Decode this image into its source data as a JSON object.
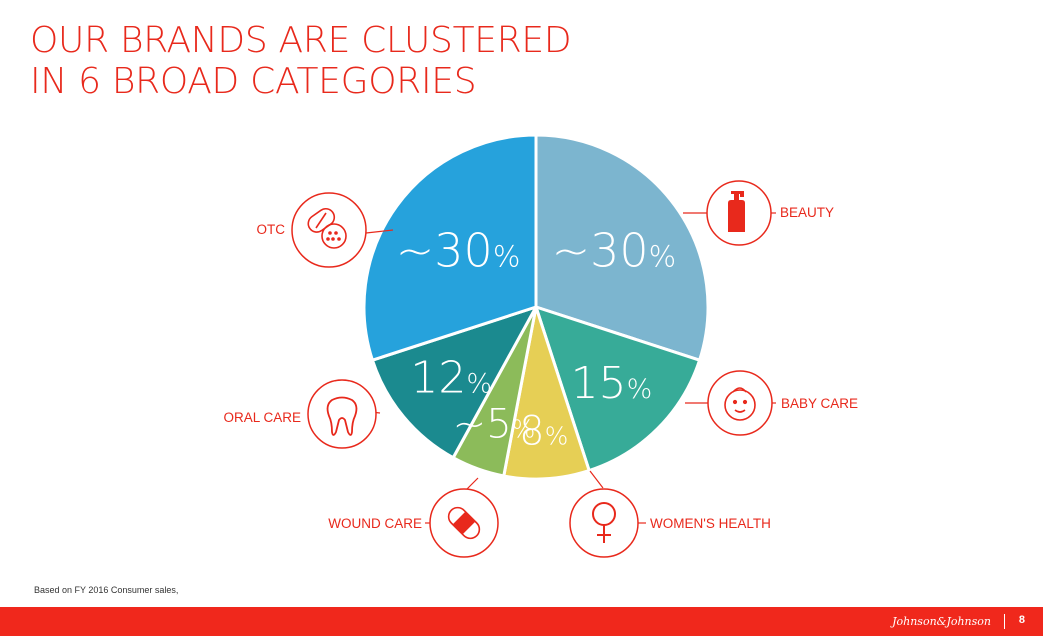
{
  "title": {
    "line1": "OUR BRANDS ARE CLUSTERED",
    "line2": "IN 6 BROAD CATEGORIES"
  },
  "chart_data": {
    "type": "pie",
    "slices": [
      {
        "label": "BEAUTY",
        "value": 30,
        "display": "~30%",
        "color": "#7cb5cf",
        "icon": "lotion-bottle-icon"
      },
      {
        "label": "BABY CARE",
        "value": 15,
        "display": "15%",
        "color": "#37ab98",
        "icon": "baby-face-icon"
      },
      {
        "label": "WOMEN'S HEALTH",
        "value": 8,
        "display": "8%",
        "color": "#e6cf55",
        "icon": "female-symbol-icon"
      },
      {
        "label": "WOUND CARE",
        "value": 5,
        "display": "~5%",
        "color": "#8cbb5a",
        "icon": "bandage-icon"
      },
      {
        "label": "ORAL CARE",
        "value": 12,
        "display": "12%",
        "color": "#1b8a8f",
        "icon": "tooth-icon"
      },
      {
        "label": "OTC",
        "value": 30,
        "display": "~30%",
        "color": "#26a2dc",
        "icon": "pills-icon"
      }
    ]
  },
  "footnote": "Based on FY 2016 Consumer sales,",
  "footer": {
    "brand": "Johnson&Johnson",
    "page": "8",
    "accent_color": "#f0281c"
  }
}
